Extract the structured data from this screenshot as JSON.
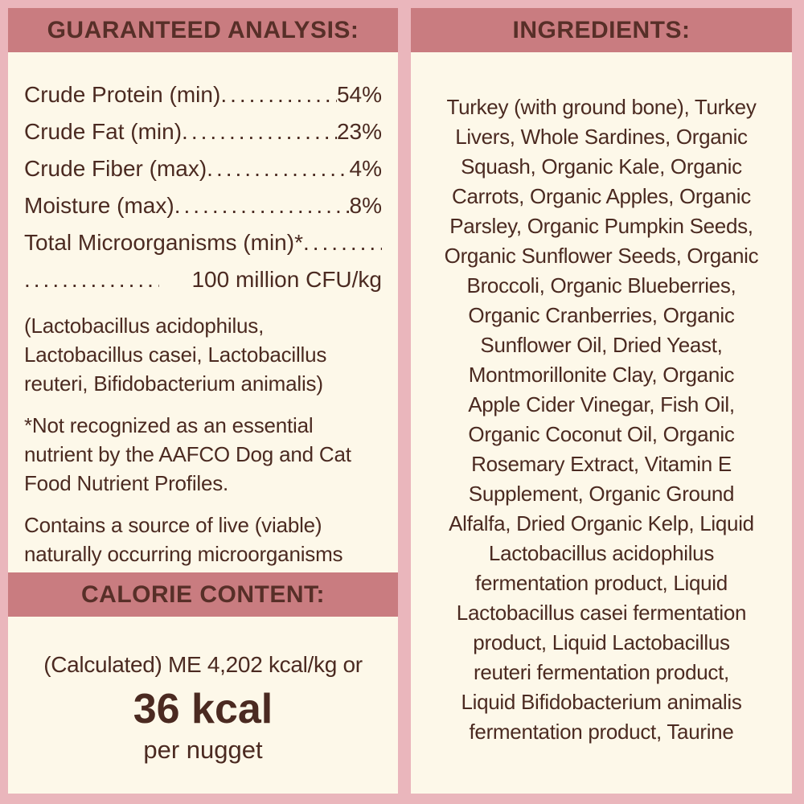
{
  "colors": {
    "background_pink": "#eab6bc",
    "band_rose": "#c97c80",
    "panel_cream": "#fdf8e9",
    "text_brown": "#4b2a21"
  },
  "guaranteed_analysis": {
    "header": "GUARANTEED ANALYSIS:",
    "rows": [
      {
        "label": "Crude Protein (min)",
        "value": "54%"
      },
      {
        "label": "Crude Fat (min)",
        "value": "23%"
      },
      {
        "label": "Crude Fiber (max)",
        "value": "4%"
      },
      {
        "label": "Moisture (max)",
        "value": "8%"
      },
      {
        "label": "Total Microorganisms (min)*",
        "value": ""
      },
      {
        "label": "",
        "value": "100 million CFU/kg"
      }
    ],
    "microorganisms": "(Lactobacillus acidophilus,\nLactobacillus casei, Lactobacillus\nreuteri, Bifidobacterium animalis)",
    "footnote": "*Not recognized as an essential\nnutrient by the AAFCO Dog and Cat\nFood Nutrient Profiles.",
    "live_note": "Contains a source of live (viable)\nnaturally occurring microorganisms"
  },
  "calorie_content": {
    "header": "CALORIE CONTENT:",
    "line1": "(Calculated) ME 4,202 kcal/kg or",
    "value": "36 kcal",
    "per": "per nugget"
  },
  "ingredients": {
    "header": "INGREDIENTS:",
    "text": "Turkey (with ground bone), Turkey\nLivers,  Whole Sardines, Organic\nSquash, Organic Kale, Organic\nCarrots, Organic Apples, Organic\nParsley, Organic Pumpkin Seeds,\nOrganic Sunflower Seeds, Organic\nBroccoli, Organic Blueberries,\nOrganic Cranberries, Organic\nSunflower Oil, Dried Yeast,\nMontmorillonite Clay, Organic\nApple Cider Vinegar, Fish Oil,\nOrganic Coconut Oil, Organic\nRosemary Extract, Vitamin E\nSupplement, Organic Ground\nAlfalfa, Dried Organic Kelp, Liquid\nLactobacillus acidophilus\nfermentation product, Liquid\nLactobacillus casei fermentation\nproduct, Liquid Lactobacillus\nreuteri fermentation product,\nLiquid Bifidobacterium animalis\nfermentation product, Taurine"
  }
}
